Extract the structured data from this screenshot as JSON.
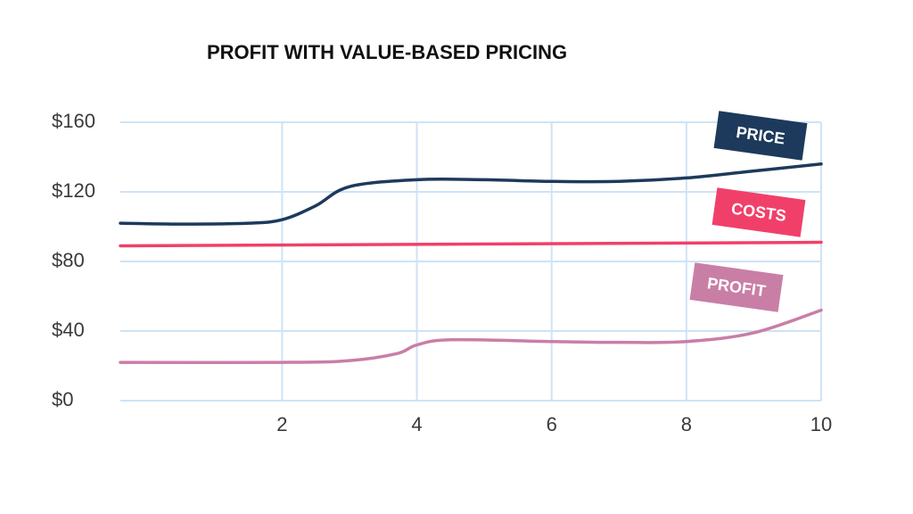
{
  "chart_data": {
    "type": "line",
    "title": "PROFIT WITH VALUE-BASED PRICING",
    "xlim": [
      -0.4,
      10
    ],
    "xticks": [
      2,
      4,
      6,
      8,
      10
    ],
    "ylim": [
      0,
      160
    ],
    "yticks": [
      {
        "value": 0,
        "label": "$0"
      },
      {
        "value": 40,
        "label": "$40"
      },
      {
        "value": 80,
        "label": "$80"
      },
      {
        "value": 120,
        "label": "$120"
      },
      {
        "value": 160,
        "label": "$160"
      }
    ],
    "grid": true,
    "series": [
      {
        "name": "PRICE",
        "color": "#1d3a5c",
        "x": [
          -0.4,
          0.5,
          1.5,
          2,
          2.5,
          3,
          4,
          5,
          6,
          7,
          8,
          9,
          10
        ],
        "values": [
          102,
          101.5,
          102,
          104,
          112,
          123,
          127,
          127,
          126,
          126,
          128,
          132,
          136
        ]
      },
      {
        "name": "COSTS",
        "color": "#f0406a",
        "x": [
          -0.4,
          10
        ],
        "values": [
          89,
          91
        ]
      },
      {
        "name": "PROFIT",
        "color": "#c97ea6",
        "x": [
          -0.4,
          2,
          3,
          3.7,
          4,
          4.5,
          6,
          7,
          8,
          9,
          10
        ],
        "values": [
          22,
          22,
          23,
          27,
          32,
          35,
          34,
          33.5,
          34,
          39,
          52
        ]
      }
    ]
  }
}
